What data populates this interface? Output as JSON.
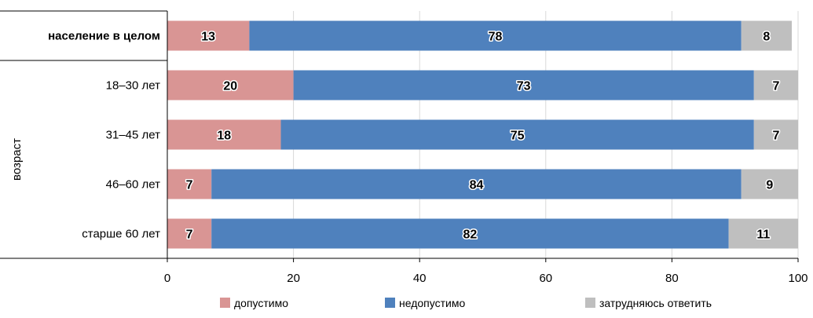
{
  "chart_data": {
    "type": "bar",
    "orientation": "horizontal",
    "stacked": true,
    "categories": [
      "население в целом",
      "18–30 лет",
      "31–45 лет",
      "46–60 лет",
      "старше 60 лет"
    ],
    "category_bold": [
      true,
      false,
      false,
      false,
      false
    ],
    "group_label": "возраст",
    "series": [
      {
        "name": "допустимо",
        "color": "#d99594",
        "values": [
          13,
          20,
          18,
          7,
          7
        ]
      },
      {
        "name": "недопустимо",
        "color": "#4f81bd",
        "values": [
          78,
          73,
          75,
          84,
          82
        ]
      },
      {
        "name": "затрудняюсь ответить",
        "color": "#bfbfbf",
        "values": [
          8,
          7,
          7,
          9,
          11
        ]
      }
    ],
    "xlim": [
      0,
      100
    ],
    "xticks": [
      0,
      20,
      40,
      60,
      80,
      100
    ],
    "grid": true,
    "legend_position": "bottom",
    "title": "",
    "xlabel": "",
    "ylabel": ""
  }
}
